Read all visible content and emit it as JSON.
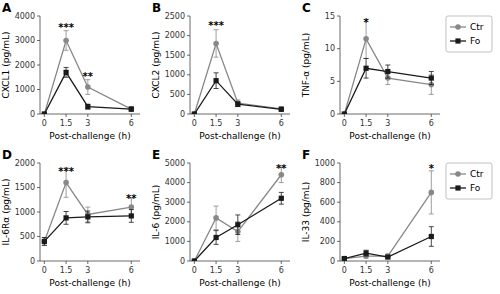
{
  "chart_data": [
    {
      "type": "line",
      "title": "A",
      "x": [
        0,
        1.5,
        3,
        6
      ],
      "xlabel": "Post-challenge (h)",
      "ylabel": "CXCL1 (pg/mL)",
      "xlim": [
        -0.3,
        6.6
      ],
      "xticks": [
        0,
        1.5,
        3,
        6
      ],
      "ylim": [
        0,
        4000
      ],
      "yticks": [
        0,
        1000,
        2000,
        3000,
        4000
      ],
      "grid": false,
      "series": [
        {
          "name": "Ctr",
          "color": "#888888",
          "marker": "circle",
          "values": [
            0,
            3000,
            1100,
            200
          ],
          "errors": [
            0,
            400,
            300,
            80
          ]
        },
        {
          "name": "Fo",
          "color": "#1a1a1a",
          "marker": "square",
          "values": [
            0,
            1700,
            300,
            200
          ],
          "errors": [
            0,
            200,
            100,
            80
          ]
        }
      ],
      "annotations": [
        {
          "x": 1.5,
          "y": 3700,
          "text": "***"
        },
        {
          "x": 3,
          "y": 1700,
          "text": "**"
        }
      ]
    },
    {
      "type": "line",
      "title": "B",
      "x": [
        0,
        1.5,
        3,
        6
      ],
      "xlabel": "Post-challenge (h)",
      "ylabel": "CXCL2 (pg/mL)",
      "xlim": [
        -0.3,
        6.6
      ],
      "xticks": [
        0,
        1.5,
        3,
        6
      ],
      "ylim": [
        0,
        2500
      ],
      "yticks": [
        0,
        500,
        1000,
        1500,
        2000,
        2500
      ],
      "grid": false,
      "series": [
        {
          "name": "Ctr",
          "color": "#888888",
          "marker": "circle",
          "values": [
            0,
            1800,
            280,
            130
          ],
          "errors": [
            0,
            350,
            80,
            50
          ]
        },
        {
          "name": "Fo",
          "color": "#1a1a1a",
          "marker": "square",
          "values": [
            0,
            850,
            250,
            120
          ],
          "errors": [
            0,
            200,
            60,
            40
          ]
        }
      ],
      "annotations": [
        {
          "x": 1.5,
          "y": 2350,
          "text": "***"
        }
      ]
    },
    {
      "type": "line",
      "title": "C",
      "x": [
        0,
        1.5,
        3,
        6
      ],
      "xlabel": "Post-challenge (h)",
      "ylabel": "TNF-α (pg/mL)",
      "xlim": [
        -0.3,
        6.6
      ],
      "xticks": [
        0,
        1.5,
        3,
        6
      ],
      "ylim": [
        0,
        15
      ],
      "yticks": [
        0,
        5,
        10,
        15
      ],
      "grid": false,
      "legend": "right",
      "series": [
        {
          "name": "Ctr",
          "color": "#888888",
          "marker": "circle",
          "values": [
            0,
            11.5,
            5.5,
            4.5
          ],
          "errors": [
            0,
            3.0,
            1.0,
            1.5
          ]
        },
        {
          "name": "Fo",
          "color": "#1a1a1a",
          "marker": "square",
          "values": [
            0,
            7.0,
            6.5,
            5.5
          ],
          "errors": [
            0,
            1.5,
            1.0,
            1.0
          ]
        }
      ],
      "annotations": [
        {
          "x": 1.5,
          "y": 14.5,
          "text": "*"
        }
      ]
    },
    {
      "type": "line",
      "title": "D",
      "x": [
        0,
        1.5,
        3,
        6
      ],
      "xlabel": "Post-challenge (h)",
      "ylabel": "IL-6Rα (pg/mL)",
      "xlim": [
        -0.3,
        6.6
      ],
      "xticks": [
        0,
        1.5,
        3,
        6
      ],
      "ylim": [
        0,
        2000
      ],
      "yticks": [
        0,
        500,
        1000,
        1500,
        2000
      ],
      "grid": false,
      "series": [
        {
          "name": "Ctr",
          "color": "#888888",
          "marker": "circle",
          "values": [
            400,
            1600,
            950,
            1100
          ],
          "errors": [
            80,
            300,
            150,
            180
          ]
        },
        {
          "name": "Fo",
          "color": "#1a1a1a",
          "marker": "square",
          "values": [
            400,
            880,
            900,
            920
          ],
          "errors": [
            80,
            130,
            120,
            130
          ]
        }
      ],
      "annotations": [
        {
          "x": 1.5,
          "y": 1900,
          "text": "***"
        },
        {
          "x": 6,
          "y": 1350,
          "text": "**"
        }
      ]
    },
    {
      "type": "line",
      "title": "E",
      "x": [
        0,
        1.5,
        3,
        6
      ],
      "xlabel": "Post-challenge (h)",
      "ylabel": "IL-6 (pg/mL)",
      "xlim": [
        -0.3,
        6.6
      ],
      "xticks": [
        0,
        1.5,
        3,
        6
      ],
      "ylim": [
        0,
        5000
      ],
      "yticks": [
        0,
        1000,
        2000,
        3000,
        4000,
        5000
      ],
      "grid": false,
      "series": [
        {
          "name": "Ctr",
          "color": "#888888",
          "marker": "circle",
          "values": [
            0,
            2200,
            1500,
            4400
          ],
          "errors": [
            0,
            600,
            500,
            400
          ]
        },
        {
          "name": "Fo",
          "color": "#1a1a1a",
          "marker": "square",
          "values": [
            0,
            1200,
            1850,
            3200
          ],
          "errors": [
            0,
            350,
            500,
            300
          ]
        }
      ],
      "annotations": [
        {
          "x": 6,
          "y": 4900,
          "text": "**"
        }
      ]
    },
    {
      "type": "line",
      "title": "F",
      "x": [
        0,
        1.5,
        3,
        6
      ],
      "xlabel": "Post-challenge (h)",
      "ylabel": "IL-33 (pg/mL)",
      "xlim": [
        -0.3,
        6.6
      ],
      "xticks": [
        0,
        1.5,
        3,
        6
      ],
      "ylim": [
        0,
        1000
      ],
      "yticks": [
        0,
        200,
        400,
        600,
        800,
        1000
      ],
      "grid": false,
      "legend": "right",
      "series": [
        {
          "name": "Ctr",
          "color": "#888888",
          "marker": "circle",
          "values": [
            25,
            50,
            50,
            700
          ],
          "errors": [
            15,
            20,
            20,
            220
          ]
        },
        {
          "name": "Fo",
          "color": "#1a1a1a",
          "marker": "square",
          "values": [
            25,
            80,
            40,
            250
          ],
          "errors": [
            15,
            30,
            10,
            100
          ]
        }
      ],
      "annotations": [
        {
          "x": 6,
          "y": 980,
          "text": "*"
        }
      ]
    }
  ]
}
